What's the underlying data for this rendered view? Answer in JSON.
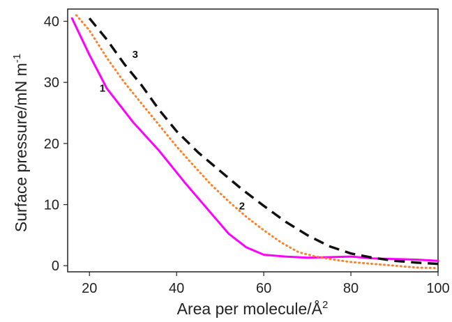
{
  "chart_data": {
    "type": "line",
    "xlabel_main": "Area per molecule/Å",
    "xlabel_sup": "2",
    "ylabel_main": "Surface pressure/mN m",
    "ylabel_sup": "-1",
    "xlim": [
      15,
      100
    ],
    "ylim": [
      -1,
      42
    ],
    "x_ticks": [
      20,
      40,
      60,
      80,
      100
    ],
    "y_ticks": [
      0,
      10,
      20,
      30,
      40
    ],
    "grid": false,
    "series": [
      {
        "label": "1",
        "color": "#ff00ff",
        "style": "solid",
        "points": [
          [
            16,
            40.5
          ],
          [
            20,
            34.5
          ],
          [
            24,
            29
          ],
          [
            30,
            23.5
          ],
          [
            36,
            18.8
          ],
          [
            42,
            13.5
          ],
          [
            48,
            8.5
          ],
          [
            52,
            5.2
          ],
          [
            56,
            3
          ],
          [
            60,
            1.8
          ],
          [
            65,
            1.5
          ],
          [
            70,
            1.3
          ],
          [
            75,
            1.4
          ],
          [
            80,
            1.5
          ],
          [
            85,
            1.2
          ],
          [
            90,
            1.1
          ],
          [
            95,
            1
          ],
          [
            100,
            0.8
          ]
        ]
      },
      {
        "label": "2",
        "color": "#ff7f27",
        "style": "dotted",
        "points": [
          [
            17,
            41
          ],
          [
            20,
            38.5
          ],
          [
            24,
            34
          ],
          [
            28,
            30
          ],
          [
            32,
            26.5
          ],
          [
            36,
            23
          ],
          [
            40,
            19.5
          ],
          [
            44,
            16.3
          ],
          [
            48,
            13.2
          ],
          [
            52,
            10.5
          ],
          [
            56,
            8
          ],
          [
            60,
            5.8
          ],
          [
            64,
            3.8
          ],
          [
            68,
            2.2
          ],
          [
            72,
            1.5
          ],
          [
            76,
            1
          ],
          [
            80,
            0.6
          ],
          [
            85,
            0.3
          ],
          [
            90,
            0
          ],
          [
            95,
            -0.3
          ],
          [
            100,
            -0.4
          ]
        ]
      },
      {
        "label": "3",
        "color": "#111111",
        "style": "dashed",
        "points": [
          [
            20,
            40.5
          ],
          [
            24,
            37
          ],
          [
            28,
            33
          ],
          [
            32,
            29.5
          ],
          [
            36,
            25.5
          ],
          [
            40,
            22
          ],
          [
            45,
            18.5
          ],
          [
            50,
            15.5
          ],
          [
            55,
            12.5
          ],
          [
            60,
            9.8
          ],
          [
            65,
            7.2
          ],
          [
            70,
            5
          ],
          [
            75,
            3.2
          ],
          [
            80,
            2
          ],
          [
            85,
            1.3
          ],
          [
            90,
            0.8
          ],
          [
            95,
            0.5
          ],
          [
            100,
            0.3
          ]
        ]
      }
    ]
  }
}
